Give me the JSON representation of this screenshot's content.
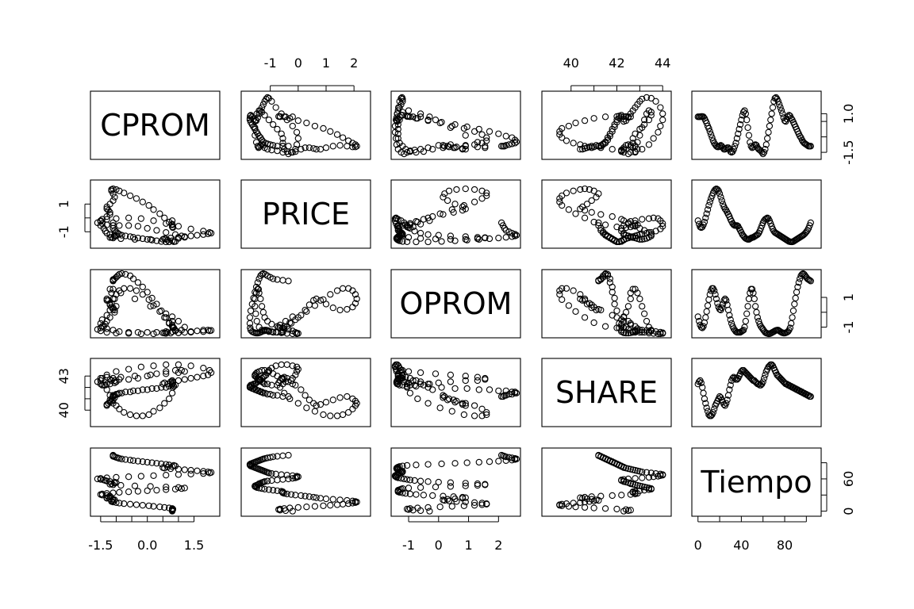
{
  "chart_data": {
    "type": "scatter",
    "layout": "pairs-matrix",
    "variables": [
      "CPROM",
      "PRICE",
      "OPROM",
      "SHARE",
      "Tiempo"
    ],
    "ranges": {
      "CPROM": [
        -1.7,
        2.2
      ],
      "PRICE": [
        -1.9,
        2.45
      ],
      "OPROM": [
        -1.45,
        2.6
      ],
      "SHARE": [
        38.9,
        44.2
      ],
      "Tiempo": [
        -2,
        110
      ]
    },
    "axes": {
      "top": [
        {
          "variable": "PRICE",
          "ticks": [
            -1,
            0,
            1,
            2
          ],
          "labels": [
            "-1",
            "0",
            "1",
            "2"
          ]
        },
        {
          "variable": "SHARE",
          "ticks": [
            40,
            42,
            44
          ],
          "minor": [
            41,
            43
          ],
          "labels": [
            "40",
            "42",
            "44"
          ]
        }
      ],
      "bottom": [
        {
          "variable": "CPROM",
          "ticks": [
            -1.5,
            0.0,
            1.5
          ],
          "minor": [
            -1.0,
            -0.5,
            0.5,
            1.0
          ],
          "labels": [
            "-1.5",
            "0.0",
            "1.5"
          ]
        },
        {
          "variable": "OPROM",
          "ticks": [
            -1,
            0,
            1,
            2
          ],
          "labels": [
            "-1",
            "0",
            "1",
            "2"
          ]
        },
        {
          "variable": "Tiempo",
          "ticks": [
            0,
            40,
            80
          ],
          "minor": [
            20,
            60,
            100
          ],
          "labels": [
            "0",
            "40",
            "80"
          ]
        }
      ],
      "left": [
        {
          "variable": "PRICE",
          "ticks": [
            -1,
            1
          ],
          "minor": [
            0
          ],
          "labels": [
            "-1",
            "1"
          ]
        },
        {
          "variable": "SHARE",
          "ticks": [
            40,
            43
          ],
          "minor": [
            41,
            42
          ],
          "labels": [
            "40",
            "43"
          ]
        }
      ],
      "right": [
        {
          "variable": "CPROM",
          "ticks": [
            -1.5,
            1.0
          ],
          "minor": [
            -0.5,
            0.5
          ],
          "labels": [
            "-1.5",
            "1.0"
          ]
        },
        {
          "variable": "OPROM",
          "ticks": [
            -1,
            1
          ],
          "minor": [
            0
          ],
          "labels": [
            "-1",
            "1"
          ]
        },
        {
          "variable": "Tiempo",
          "ticks": [
            0,
            60
          ],
          "minor": [
            30,
            90
          ],
          "labels": [
            "0",
            "60"
          ]
        }
      ]
    },
    "observations": {
      "Tiempo": [
        0,
        1,
        2,
        3,
        4,
        5,
        6,
        7,
        8,
        9,
        10,
        11,
        12,
        13,
        14,
        15,
        16,
        17,
        18,
        19,
        20,
        21,
        22,
        23,
        24,
        25,
        26,
        27,
        28,
        29,
        30,
        31,
        32,
        33,
        34,
        35,
        36,
        37,
        38,
        39,
        40,
        41,
        42,
        43,
        44,
        45,
        46,
        47,
        48,
        49,
        50,
        51,
        52,
        53,
        54,
        55,
        56,
        57,
        58,
        59,
        60,
        61,
        62,
        63,
        64,
        65,
        66,
        67,
        68,
        69,
        70,
        71,
        72,
        73,
        74,
        75,
        76,
        77,
        78,
        79,
        80,
        81,
        82,
        83,
        84,
        85,
        86,
        87,
        88,
        89,
        90,
        91,
        92,
        93,
        94,
        95,
        96,
        97,
        98,
        99,
        100,
        101,
        102,
        103,
        104
      ],
      "CPROM": [
        0.8,
        0.8,
        0.8,
        0.82,
        0.82,
        0.8,
        0.7,
        0.55,
        0.4,
        0.2,
        0.05,
        -0.15,
        -0.35,
        -0.55,
        -0.75,
        -0.9,
        -1.0,
        -1.1,
        -1.15,
        -1.15,
        -1.1,
        -1.05,
        -1.1,
        -1.2,
        -1.3,
        -1.3,
        -1.25,
        -1.2,
        -1.2,
        -1.3,
        -1.45,
        -1.5,
        -1.45,
        -1.3,
        -1.1,
        -0.9,
        -0.6,
        -0.3,
        0.0,
        0.3,
        0.6,
        0.9,
        1.1,
        1.2,
        1.0,
        0.6,
        0.1,
        -0.4,
        -0.85,
        -1.1,
        -1.2,
        -1.15,
        -1.05,
        -1.0,
        -1.05,
        -1.2,
        -1.3,
        -1.35,
        -1.4,
        -1.5,
        -1.6,
        -1.5,
        -1.3,
        -1.0,
        -0.6,
        -0.2,
        0.2,
        0.6,
        1.0,
        1.4,
        1.8,
        2.0,
        2.05,
        1.95,
        1.8,
        1.6,
        1.4,
        1.2,
        1.0,
        0.75,
        0.55,
        0.5,
        0.65,
        0.8,
        0.9,
        0.85,
        0.7,
        0.6,
        0.45,
        0.3,
        0.15,
        0.0,
        -0.15,
        -0.3,
        -0.45,
        -0.55,
        -0.7,
        -0.82,
        -0.9,
        -0.95,
        -1.0,
        -1.05,
        -1.1,
        -1.1,
        -1.1
      ],
      "PRICE": [
        -0.2,
        -0.45,
        -0.65,
        -0.7,
        -0.65,
        -0.5,
        -0.3,
        0.0,
        0.3,
        0.6,
        0.9,
        1.15,
        1.4,
        1.6,
        1.8,
        1.95,
        2.05,
        2.1,
        2.05,
        1.95,
        1.75,
        1.5,
        1.25,
        1.0,
        0.8,
        0.65,
        0.55,
        0.4,
        0.25,
        0.1,
        -0.1,
        -0.25,
        -0.4,
        -0.5,
        -0.55,
        -0.55,
        -0.55,
        -0.6,
        -0.75,
        -0.9,
        -1.05,
        -1.2,
        -1.3,
        -1.4,
        -1.48,
        -1.52,
        -1.55,
        -1.55,
        -1.5,
        -1.45,
        -1.42,
        -1.4,
        -1.35,
        -1.3,
        -1.25,
        -1.2,
        -1.1,
        -0.95,
        -0.75,
        -0.55,
        -0.35,
        -0.2,
        -0.1,
        -0.05,
        0.0,
        -0.05,
        -0.2,
        -0.4,
        -0.6,
        -0.8,
        -0.95,
        -1.05,
        -1.1,
        -1.15,
        -1.2,
        -1.25,
        -1.3,
        -1.35,
        -1.4,
        -1.45,
        -1.5,
        -1.55,
        -1.6,
        -1.65,
        -1.7,
        -1.72,
        -1.73,
        -1.73,
        -1.7,
        -1.65,
        -1.6,
        -1.55,
        -1.5,
        -1.45,
        -1.4,
        -1.35,
        -1.3,
        -1.25,
        -1.18,
        -1.1,
        -1.0,
        -0.9,
        -0.75,
        -0.55,
        -0.35
      ],
      "OPROM": [
        -0.3,
        -0.6,
        -0.85,
        -1.0,
        -1.05,
        -0.95,
        -0.7,
        -0.35,
        0.05,
        0.45,
        0.85,
        1.2,
        1.45,
        1.6,
        1.6,
        1.45,
        1.2,
        0.9,
        0.6,
        0.35,
        0.2,
        0.15,
        0.3,
        0.55,
        0.8,
        0.9,
        0.8,
        0.5,
        0.15,
        -0.2,
        -0.5,
        -0.75,
        -0.95,
        -1.1,
        -1.2,
        -1.3,
        -1.35,
        -1.35,
        -1.35,
        -1.35,
        -1.3,
        -1.25,
        -1.2,
        -1.0,
        -0.6,
        -0.1,
        0.4,
        0.9,
        1.3,
        1.55,
        1.55,
        1.3,
        0.9,
        0.4,
        0.0,
        -0.35,
        -0.6,
        -0.8,
        -0.95,
        -1.05,
        -1.15,
        -1.25,
        -1.35,
        -1.4,
        -1.42,
        -1.45,
        -1.45,
        -1.42,
        -1.38,
        -1.34,
        -1.3,
        -1.25,
        -1.22,
        -1.2,
        -1.2,
        -1.25,
        -1.3,
        -1.35,
        -1.38,
        -1.4,
        -1.4,
        -1.38,
        -1.35,
        -1.3,
        -1.2,
        -1.05,
        -0.75,
        -0.35,
        0.1,
        0.55,
        0.95,
        1.35,
        1.7,
        2.0,
        2.25,
        2.45,
        2.55,
        2.6,
        2.55,
        2.45,
        2.35,
        2.25,
        2.2,
        2.15,
        2.1
      ],
      "SHARE": [
        42.3,
        42.5,
        42.6,
        42.4,
        42.0,
        41.5,
        41.0,
        40.6,
        40.2,
        39.9,
        39.6,
        39.5,
        39.5,
        39.6,
        39.8,
        40.1,
        40.4,
        40.6,
        40.8,
        41.0,
        41.2,
        41.1,
        40.9,
        40.7,
        40.5,
        40.4,
        40.6,
        40.9,
        41.3,
        41.8,
        42.2,
        42.6,
        42.8,
        42.9,
        42.8,
        42.7,
        42.7,
        42.8,
        43.0,
        43.2,
        43.4,
        43.5,
        43.5,
        43.4,
        43.3,
        43.2,
        43.1,
        43.0,
        42.9,
        42.8,
        42.7,
        42.6,
        42.6,
        42.5,
        42.4,
        42.3,
        42.3,
        42.2,
        42.2,
        42.3,
        42.5,
        42.8,
        43.1,
        43.4,
        43.6,
        43.8,
        43.9,
        44.0,
        44.0,
        43.9,
        43.7,
        43.5,
        43.3,
        43.1,
        43.0,
        42.9,
        42.8,
        42.7,
        42.6,
        42.5,
        42.4,
        42.3,
        42.3,
        42.2,
        42.2,
        42.1,
        42.1,
        42.0,
        42.0,
        41.9,
        41.9,
        41.8,
        41.8,
        41.7,
        41.7,
        41.6,
        41.6,
        41.5,
        41.5,
        41.4,
        41.4,
        41.3,
        41.3,
        41.2,
        41.2
      ]
    }
  }
}
